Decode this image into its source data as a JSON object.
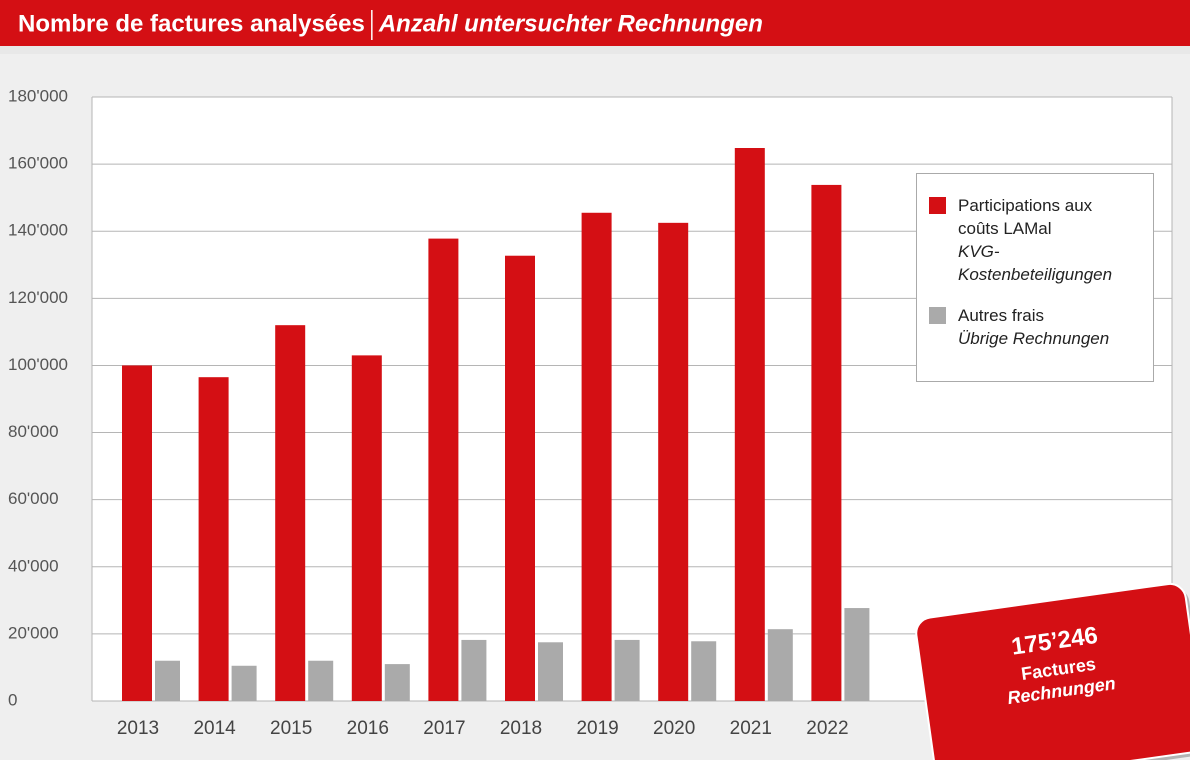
{
  "chart_data": {
    "type": "bar",
    "title": "Nombre de factures analysées",
    "subtitle": "Anzahl untersuchter Rechnungen",
    "categories": [
      "2013",
      "2014",
      "2015",
      "2016",
      "2017",
      "2018",
      "2019",
      "2020",
      "2021",
      "2022"
    ],
    "series": [
      {
        "name": "Participations aux coûts LAMal",
        "name_translation": "KVG-Kostenbeteiligungen",
        "color": "#d40f14",
        "values": [
          100000,
          96500,
          112000,
          103000,
          137800,
          132700,
          145500,
          142500,
          164800,
          153800
        ]
      },
      {
        "name": "Autres frais",
        "name_translation": "Übrige Rechnungen",
        "color": "#aaaaaa",
        "values": [
          12000,
          10500,
          12000,
          11000,
          18200,
          17500,
          18200,
          17800,
          21400,
          27700
        ]
      }
    ],
    "ylim": [
      0,
      180000
    ],
    "yticks": [
      0,
      {
        "value": 20000,
        "label": "20'000"
      },
      {
        "value": 40000,
        "label": "40'000"
      },
      {
        "value": 60000,
        "label": "60'000"
      },
      {
        "value": 80000,
        "label": "80'000"
      },
      {
        "value": 100000,
        "label": "100'000"
      },
      {
        "value": 120000,
        "label": "120'000"
      },
      {
        "value": 140000,
        "label": "140'000"
      },
      {
        "value": 160000,
        "label": "160'000"
      },
      {
        "value": 180000,
        "label": "180'000"
      }
    ],
    "grid": true,
    "legend": "upper right",
    "total": {
      "value": 175246,
      "label": "175’246"
    },
    "total_label": "Factures",
    "total_label_translation": "Rechnungen"
  }
}
